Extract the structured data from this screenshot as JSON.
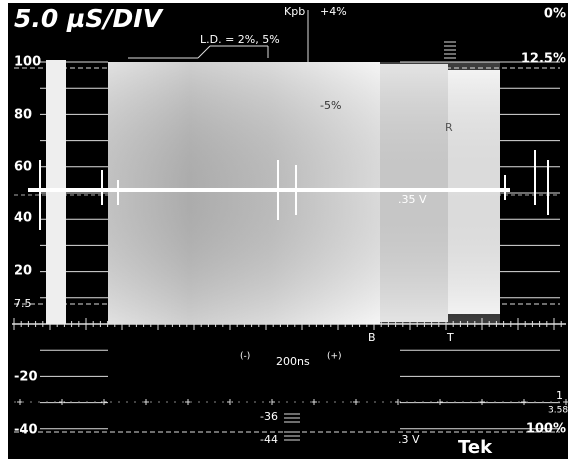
{
  "header": {
    "timebase": "5.0 µS/DIV"
  },
  "scale": {
    "labels": [
      "100",
      "80",
      "60",
      "40",
      "20",
      "7.5",
      "-20",
      "-40"
    ]
  },
  "annotations": {
    "kpb": "Kpb",
    "plus4": "+4%",
    "zero_pct": "0%",
    "p125": "12.5%",
    "ld": "L.D. = 2%, 5%",
    "minus5": "-5%",
    "r": "R",
    "v35": ".35 V",
    "b": "B",
    "t": "T",
    "neg": "(-)",
    "ns200": "200ns",
    "pos": "(+)",
    "m36": "-36",
    "m44": "-44",
    "v3": ".3 V",
    "p100": "100%",
    "one": "1",
    "f358": "3.58"
  },
  "footer": {
    "brand": "Tek"
  }
}
